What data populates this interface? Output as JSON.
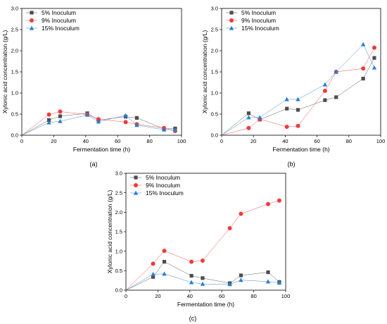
{
  "chart_data": [
    {
      "type": "scatter",
      "panel_label": "(a)",
      "xlabel": "Fermentation time (h)",
      "ylabel": "Xylonic acid concentration (g/L)",
      "xlim": [
        0,
        100
      ],
      "ylim": [
        0,
        3.0
      ],
      "xticks": [
        0,
        20,
        40,
        60,
        80,
        100
      ],
      "xtick_labels": [
        "0",
        "20",
        "40",
        "60",
        "80",
        "100"
      ],
      "yticks": [
        0,
        0.5,
        1.0,
        1.5,
        2.0,
        2.5,
        3.0
      ],
      "ytick_labels": [
        "0.0",
        "0.5",
        "1.0",
        "1.5",
        "2.0",
        "2.5",
        "3.0"
      ],
      "legend_position": "top-left",
      "series": [
        {
          "name": "5% Inoculum",
          "marker": "square",
          "color": "#4d4d4d",
          "x": [
            0,
            17,
            24,
            41,
            48,
            65,
            72,
            89,
            96
          ],
          "y": [
            0,
            0.36,
            0.45,
            0.52,
            0.36,
            0.44,
            0.41,
            0.15,
            0.16
          ]
        },
        {
          "name": "9% Inoculum",
          "marker": "circle",
          "color": "#ef3b3b",
          "x": [
            0,
            17,
            24,
            41,
            48,
            65,
            72,
            89,
            96
          ],
          "y": [
            0,
            0.49,
            0.56,
            0.49,
            0.38,
            0.31,
            0.26,
            0.17,
            0.1
          ]
        },
        {
          "name": "15% Inoculum",
          "marker": "triangle",
          "color": "#2a7fd4",
          "x": [
            0,
            17,
            24,
            41,
            48,
            65,
            72,
            89,
            96
          ],
          "y": [
            0,
            0.3,
            0.33,
            0.48,
            0.32,
            0.47,
            0.24,
            0.13,
            0.13
          ]
        }
      ]
    },
    {
      "type": "scatter",
      "panel_label": "(b)",
      "xlabel": "Fermentation time (h)",
      "ylabel": "Xylonic acid concentration (g/L)",
      "xlim": [
        0,
        100
      ],
      "ylim": [
        0,
        3.0
      ],
      "xticks": [
        0,
        20,
        40,
        60,
        80,
        100
      ],
      "xtick_labels": [
        "0",
        "20",
        "40",
        "60",
        "80",
        "100"
      ],
      "yticks": [
        0,
        0.5,
        1.0,
        1.5,
        2.0,
        2.5,
        3.0
      ],
      "ytick_labels": [
        "0.0",
        "0.5",
        "1.0",
        "1.5",
        "2.0",
        "2.5",
        "3.0"
      ],
      "legend_position": "top-left",
      "series": [
        {
          "name": "5% Inoculum",
          "marker": "square",
          "color": "#4d4d4d",
          "x": [
            0,
            17,
            24,
            41,
            48,
            65,
            72,
            89,
            96
          ],
          "y": [
            0,
            0.52,
            0.37,
            0.63,
            0.6,
            0.83,
            0.9,
            1.34,
            1.83
          ]
        },
        {
          "name": "9% Inoculum",
          "marker": "circle",
          "color": "#ef3b3b",
          "x": [
            0,
            17,
            24,
            41,
            48,
            65,
            72,
            89,
            96
          ],
          "y": [
            0,
            0.17,
            0.38,
            0.2,
            0.22,
            1.05,
            1.5,
            1.58,
            2.07
          ]
        },
        {
          "name": "15% Inoculum",
          "marker": "triangle",
          "color": "#2a7fd4",
          "x": [
            0,
            17,
            24,
            41,
            48,
            65,
            72,
            89,
            96
          ],
          "y": [
            0,
            0.42,
            0.42,
            0.85,
            0.85,
            1.2,
            1.5,
            2.15,
            1.6
          ]
        }
      ]
    },
    {
      "type": "scatter",
      "panel_label": "(c)",
      "xlabel": "Fermentation time (h)",
      "ylabel": "Xylonic acid concentration (g/L)",
      "xlim": [
        0,
        100
      ],
      "ylim": [
        0,
        3.0
      ],
      "xticks": [
        0,
        20,
        40,
        60,
        80,
        100
      ],
      "xtick_labels": [
        "0",
        "20",
        "40",
        "60",
        "80",
        "100"
      ],
      "yticks": [
        0,
        0.5,
        1.0,
        1.5,
        2.0,
        2.5,
        3.0
      ],
      "ytick_labels": [
        "0.0",
        "0.5",
        "1.0",
        "1.5",
        "2.0",
        "2.5",
        "3.0"
      ],
      "legend_position": "top-left",
      "series": [
        {
          "name": "5% Inoculum",
          "marker": "square",
          "color": "#4d4d4d",
          "x": [
            0,
            17,
            24,
            41,
            48,
            65,
            72,
            89,
            96
          ],
          "y": [
            0,
            0.34,
            0.73,
            0.37,
            0.31,
            0.18,
            0.38,
            0.46,
            0.21
          ]
        },
        {
          "name": "9% Inoculum",
          "marker": "circle",
          "color": "#ef3b3b",
          "x": [
            0,
            17,
            24,
            41,
            48,
            65,
            72,
            89,
            96
          ],
          "y": [
            0,
            0.68,
            1.01,
            0.73,
            0.76,
            1.59,
            1.96,
            2.21,
            2.3
          ]
        },
        {
          "name": "15% Inoculum",
          "marker": "triangle",
          "color": "#2a7fd4",
          "x": [
            0,
            17,
            24,
            41,
            48,
            65,
            72,
            89,
            96
          ],
          "y": [
            0,
            0.41,
            0.42,
            0.2,
            0.16,
            0.15,
            0.26,
            0.22,
            0.19
          ]
        }
      ]
    }
  ]
}
